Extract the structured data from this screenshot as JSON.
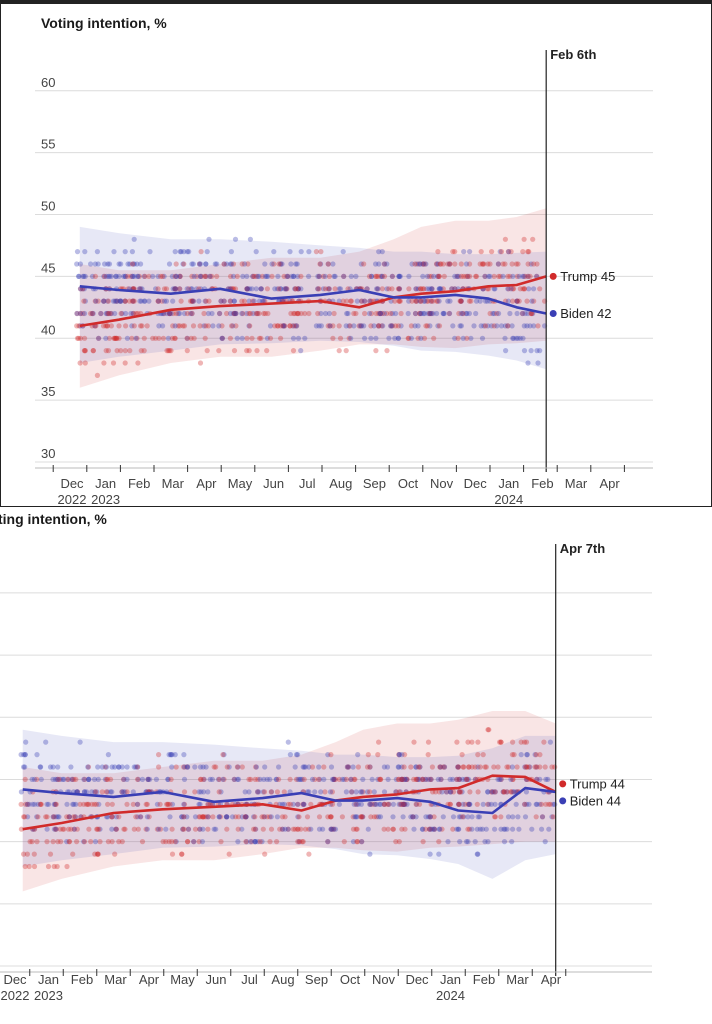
{
  "chart_data": [
    {
      "type": "scatter",
      "title": "Voting intention, %",
      "ylim": [
        30,
        62
      ],
      "yticks": [
        "30",
        "35",
        "40",
        "45",
        "50",
        "55",
        "60"
      ],
      "xlim_month_index": [
        -1.5,
        16.4
      ],
      "month_labels": [
        "Dec",
        "Jan",
        "Feb",
        "Mar",
        "Apr",
        "May",
        "Jun",
        "Jul",
        "Aug",
        "Sep",
        "Oct",
        "Nov",
        "Dec",
        "Jan",
        "Feb",
        "Mar",
        "Apr"
      ],
      "year_labels": [
        {
          "text": "2022",
          "month": "Dec 2022"
        },
        {
          "text": "2023",
          "month": "Jan 2023"
        },
        {
          "text": "2024",
          "month": "Jan 2024"
        }
      ],
      "vline": {
        "date": "2024-02-06",
        "label": "Feb 6th"
      },
      "colors": {
        "Trump": "#d12b2b",
        "Biden": "#3a3fb5"
      },
      "series": [
        {
          "name": "Trump",
          "end_label": "Trump 45",
          "trend_dates": [
            "2022-12-10",
            "2023-01-15",
            "2023-03-01",
            "2023-04-15",
            "2023-06-01",
            "2023-07-15",
            "2023-08-20",
            "2023-09-20",
            "2023-10-15",
            "2023-11-15",
            "2023-12-15",
            "2024-01-10",
            "2024-02-06"
          ],
          "trend": [
            41,
            41.5,
            42.3,
            42.6,
            42.8,
            43.0,
            42.5,
            43.3,
            43.6,
            43.8,
            44.2,
            44.3,
            45.0
          ],
          "band_low": [
            36,
            37,
            38,
            38.5,
            38.5,
            39,
            39.5,
            39.5,
            39.3,
            39.2,
            39.5,
            39.6,
            39.8
          ],
          "band_high": [
            46,
            45.5,
            45.5,
            46,
            46.5,
            46.5,
            47,
            48,
            49,
            49.5,
            49.5,
            49.8,
            50.5
          ]
        },
        {
          "name": "Biden",
          "end_label": "Biden 42",
          "trend_dates": [
            "2022-12-10",
            "2023-01-15",
            "2023-03-01",
            "2023-04-15",
            "2023-06-01",
            "2023-07-15",
            "2023-08-20",
            "2023-09-20",
            "2023-10-15",
            "2023-11-15",
            "2023-12-15",
            "2024-01-10",
            "2024-02-06"
          ],
          "trend": [
            44.2,
            43.9,
            43.6,
            44.0,
            43.2,
            43.5,
            43.9,
            43.3,
            43.3,
            43.5,
            43.2,
            42.5,
            42.0
          ],
          "band_low": [
            38,
            38.5,
            39,
            39.5,
            39.6,
            39.8,
            39.7,
            39.4,
            39.0,
            38.9,
            38.6,
            38.2,
            37.5
          ],
          "band_high": [
            49,
            48.5,
            48,
            48,
            47.8,
            47.5,
            47.3,
            47.0,
            47.0,
            46.8,
            46.8,
            46.9,
            47.0
          ]
        }
      ]
    },
    {
      "type": "scatter",
      "title": "ting intention, %",
      "ylim": [
        30,
        62
      ],
      "yticks": [],
      "xlim_month_index": [
        -1.5,
        16.4
      ],
      "month_labels": [
        "Dec",
        "Jan",
        "Feb",
        "Mar",
        "Apr",
        "May",
        "Jun",
        "Jul",
        "Aug",
        "Sep",
        "Oct",
        "Nov",
        "Dec",
        "Jan",
        "Feb",
        "Mar",
        "Apr"
      ],
      "year_labels": [
        {
          "text": "2022",
          "month": "Dec 2022"
        },
        {
          "text": "2023",
          "month": "Jan 2023"
        },
        {
          "text": "2024",
          "month": "Jan 2024"
        }
      ],
      "vline": {
        "date": "2024-04-07",
        "label": "Apr 7th"
      },
      "colors": {
        "Trump": "#d12b2b",
        "Biden": "#3a3fb5"
      },
      "series": [
        {
          "name": "Trump",
          "end_label": "Trump 44",
          "trend_dates": [
            "2022-12-10",
            "2023-01-15",
            "2023-03-01",
            "2023-04-15",
            "2023-06-01",
            "2023-07-15",
            "2023-08-20",
            "2023-09-20",
            "2023-10-15",
            "2023-11-15",
            "2023-12-15",
            "2024-01-10",
            "2024-02-10",
            "2024-03-10",
            "2024-04-07"
          ],
          "trend": [
            41,
            41.5,
            42.3,
            42.6,
            42.8,
            43.0,
            42.5,
            43.3,
            43.6,
            43.8,
            44.2,
            44.3,
            45.3,
            45.2,
            44.0
          ],
          "band_low": [
            36,
            37,
            38,
            38.5,
            38.5,
            39,
            39.5,
            39.5,
            39.3,
            39.2,
            39.5,
            39.6,
            39.8,
            40.0,
            40.0
          ],
          "band_high": [
            46,
            45.5,
            45.5,
            46,
            46.5,
            46.5,
            47,
            48,
            49,
            49.5,
            49.5,
            49.8,
            50.5,
            50.5,
            49.5
          ]
        },
        {
          "name": "Biden",
          "end_label": "Biden 44",
          "trend_dates": [
            "2022-12-10",
            "2023-01-15",
            "2023-03-01",
            "2023-04-15",
            "2023-06-01",
            "2023-07-15",
            "2023-08-20",
            "2023-09-20",
            "2023-10-15",
            "2023-11-15",
            "2023-12-15",
            "2024-01-10",
            "2024-02-10",
            "2024-03-10",
            "2024-04-07"
          ],
          "trend": [
            44.2,
            43.9,
            43.6,
            44.0,
            43.2,
            43.5,
            43.9,
            43.3,
            43.3,
            43.5,
            43.2,
            42.5,
            42.3,
            44.3,
            44.0
          ],
          "band_low": [
            38,
            38.5,
            39,
            39.5,
            39.6,
            39.8,
            39.7,
            39.4,
            39.0,
            38.9,
            38.6,
            38.2,
            37.0,
            38.5,
            39.0
          ],
          "band_high": [
            49,
            48.5,
            48,
            48,
            47.8,
            47.5,
            47.3,
            47.0,
            47.0,
            46.8,
            46.8,
            46.9,
            47.5,
            48.5,
            48.5
          ]
        }
      ]
    }
  ]
}
